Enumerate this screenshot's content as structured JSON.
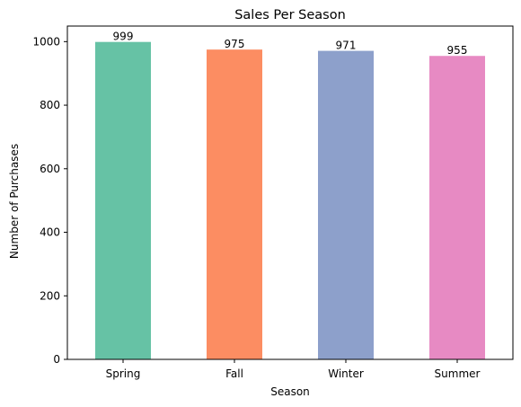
{
  "chart_data": {
    "type": "bar",
    "title": "Sales Per Season",
    "xlabel": "Season",
    "ylabel": "Number of Purchases",
    "categories": [
      "Spring",
      "Fall",
      "Winter",
      "Summer"
    ],
    "values": [
      999,
      975,
      971,
      955
    ],
    "data_labels": [
      "999",
      "975",
      "971",
      "955"
    ],
    "colors": [
      "#66c2a5",
      "#fc8d62",
      "#8da0cb",
      "#e78ac3"
    ],
    "ylim": [
      0,
      1049
    ],
    "yticks": [
      0,
      200,
      400,
      600,
      800,
      1000
    ],
    "ytick_labels": [
      "0",
      "200",
      "400",
      "600",
      "800",
      "1000"
    ],
    "grid": false,
    "legend": "none"
  }
}
